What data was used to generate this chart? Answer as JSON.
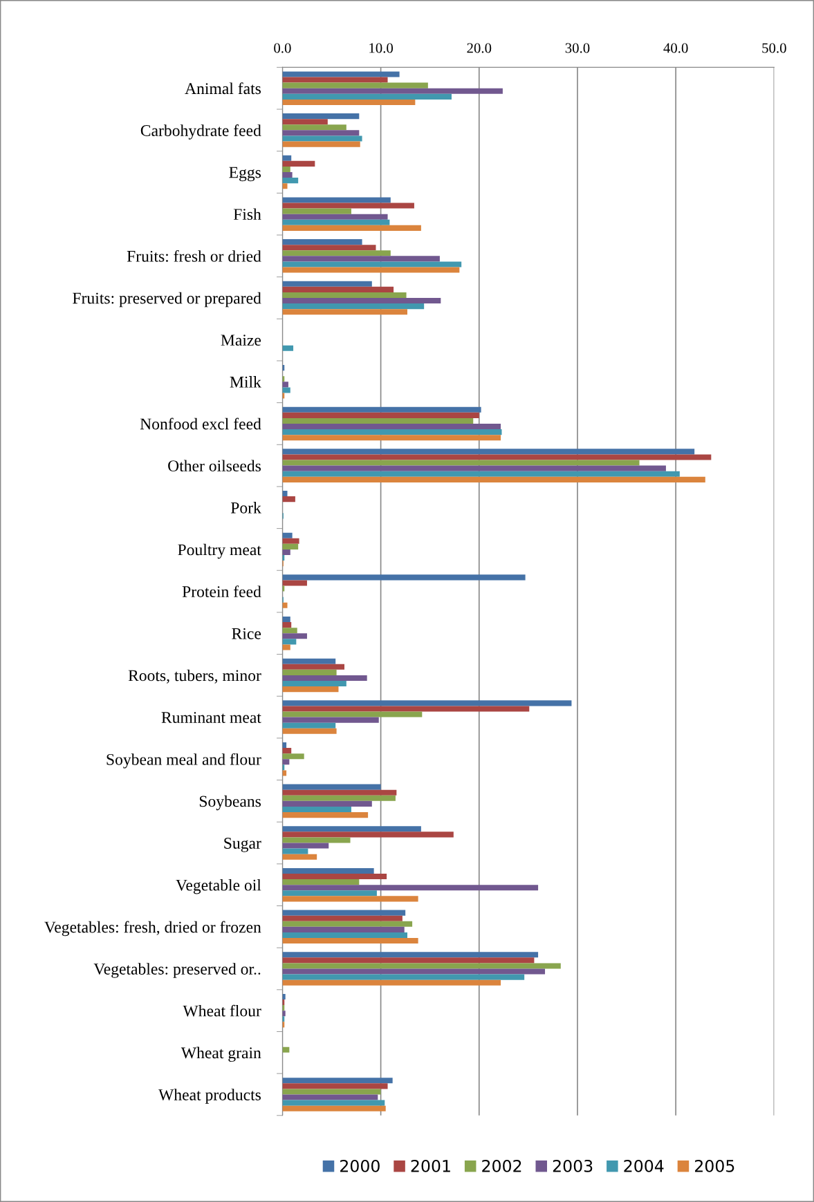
{
  "chart_data": {
    "type": "bar",
    "orientation": "horizontal",
    "categories": [
      "Animal fats",
      "Carbohydrate feed",
      "Eggs",
      "Fish",
      "Fruits: fresh or dried",
      "Fruits: preserved or prepared",
      "Maize",
      "Milk",
      "Nonfood excl feed",
      "Other oilseeds",
      "Pork",
      "Poultry meat",
      "Protein feed",
      "Rice",
      "Roots, tubers, minor",
      "Ruminant meat",
      "Soybean meal and flour",
      "Soybeans",
      "Sugar",
      "Vegetable oil",
      "Vegetables: fresh, dried or frozen",
      "Vegetables: preserved or..",
      "Wheat flour",
      "Wheat grain",
      "Wheat products"
    ],
    "series": [
      {
        "name": "2000",
        "color": "#4572a7",
        "values": [
          11.9,
          7.8,
          0.9,
          11.0,
          8.1,
          9.1,
          0,
          0.2,
          20.2,
          41.9,
          0.5,
          1.0,
          24.7,
          0.8,
          5.4,
          29.4,
          0.4,
          10.0,
          14.1,
          9.3,
          12.5,
          26.0,
          0.3,
          0,
          11.2
        ]
      },
      {
        "name": "2001",
        "color": "#aa4643",
        "values": [
          10.7,
          4.6,
          3.3,
          13.4,
          9.5,
          11.3,
          0,
          0,
          20.0,
          43.6,
          1.3,
          1.7,
          2.5,
          0.9,
          6.3,
          25.1,
          0.9,
          11.6,
          17.4,
          10.6,
          12.2,
          25.6,
          0.2,
          0,
          10.7
        ]
      },
      {
        "name": "2002",
        "color": "#89a54e",
        "values": [
          14.8,
          6.5,
          0.8,
          7.0,
          11.0,
          12.6,
          0,
          0.2,
          19.4,
          36.3,
          null,
          1.6,
          0.2,
          1.5,
          5.5,
          14.2,
          2.2,
          11.5,
          6.9,
          7.8,
          13.2,
          28.3,
          0.2,
          0.7,
          10.0
        ]
      },
      {
        "name": "2003",
        "color": "#71588f",
        "values": [
          22.4,
          7.8,
          1.0,
          10.7,
          16.0,
          16.1,
          0,
          0.6,
          22.2,
          39.0,
          null,
          0.8,
          null,
          2.5,
          8.6,
          9.8,
          0.7,
          9.1,
          4.7,
          26.0,
          12.4,
          26.7,
          0.3,
          0,
          9.7
        ]
      },
      {
        "name": "2004",
        "color": "#4198af",
        "values": [
          17.2,
          8.1,
          1.6,
          10.9,
          18.2,
          14.4,
          1.1,
          0.8,
          22.3,
          40.4,
          0.1,
          0.2,
          0.1,
          1.4,
          6.5,
          5.4,
          0.2,
          7.0,
          2.6,
          9.6,
          12.7,
          24.6,
          0.2,
          0,
          10.4
        ]
      },
      {
        "name": "2005",
        "color": "#db843d",
        "values": [
          13.5,
          7.9,
          0.5,
          14.1,
          18.0,
          12.7,
          0,
          0.2,
          22.2,
          43.0,
          0,
          0.1,
          0.5,
          0.8,
          5.7,
          5.5,
          0.4,
          8.7,
          3.5,
          13.8,
          13.8,
          22.2,
          0.2,
          0,
          10.5
        ]
      }
    ],
    "xlim": [
      0,
      50
    ],
    "xticks": [
      {
        "value": 0,
        "label": "0.0"
      },
      {
        "value": 10,
        "label": "10.0"
      },
      {
        "value": 20,
        "label": "20.0"
      },
      {
        "value": 30,
        "label": "30.0"
      },
      {
        "value": 40,
        "label": "40.0"
      },
      {
        "value": 50,
        "label": "50.0"
      }
    ],
    "grid": "x",
    "legend": "bottom"
  }
}
